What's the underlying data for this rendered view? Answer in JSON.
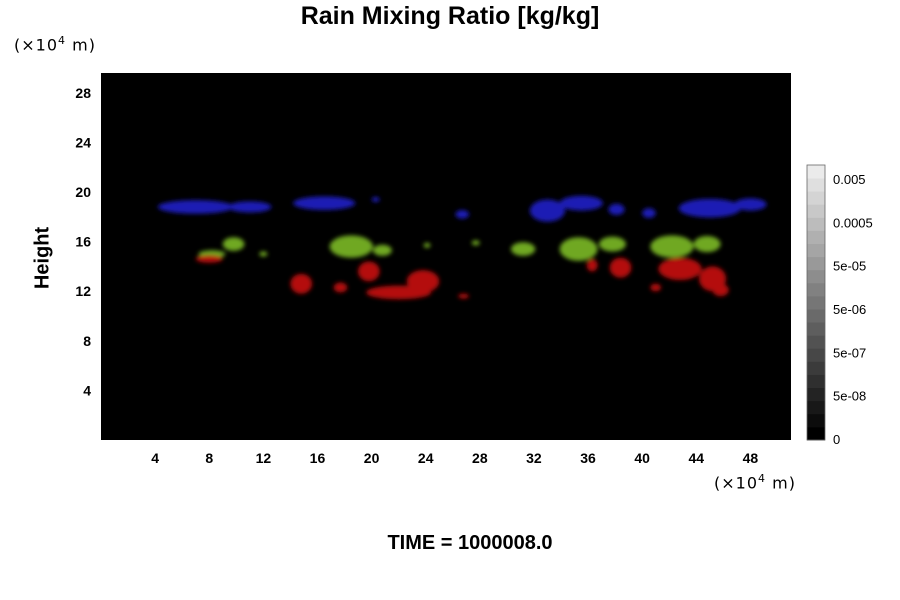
{
  "chart_data": {
    "type": "heatmap",
    "title": "Rain Mixing Ratio [kg/kg]",
    "ylabel": "Height",
    "xlabel": "",
    "x_unit": {
      "prefix": "(×10",
      "exp": "4",
      "suffix": " m)"
    },
    "y_unit": {
      "prefix": "(×10",
      "exp": "4",
      "suffix": " m)"
    },
    "xlim": [
      0,
      51
    ],
    "ylim": [
      0,
      29.6
    ],
    "x_ticks": [
      4,
      8,
      12,
      16,
      20,
      24,
      28,
      32,
      36,
      40,
      44,
      48
    ],
    "y_ticks": [
      4,
      8,
      12,
      16,
      20,
      24,
      28
    ],
    "background_color": "#000000",
    "colorbar": {
      "labels": [
        "0.005",
        "0.0005",
        "5e-05",
        "5e-06",
        "5e-07",
        "5e-08",
        "0"
      ],
      "levels": 21
    },
    "regions": [
      {
        "color": "#1a1ab4",
        "blobs": [
          {
            "x": 7.0,
            "y": 18.8,
            "rx": 2.8,
            "ry": 0.55
          },
          {
            "x": 11.0,
            "y": 18.8,
            "rx": 1.6,
            "ry": 0.45
          },
          {
            "x": 16.5,
            "y": 19.1,
            "rx": 2.3,
            "ry": 0.55
          },
          {
            "x": 20.3,
            "y": 19.4,
            "rx": 0.3,
            "ry": 0.2
          },
          {
            "x": 26.7,
            "y": 18.2,
            "rx": 0.5,
            "ry": 0.35
          },
          {
            "x": 33.0,
            "y": 18.5,
            "rx": 1.3,
            "ry": 0.9
          },
          {
            "x": 35.5,
            "y": 19.1,
            "rx": 1.6,
            "ry": 0.6
          },
          {
            "x": 38.1,
            "y": 18.6,
            "rx": 0.6,
            "ry": 0.45
          },
          {
            "x": 40.5,
            "y": 18.3,
            "rx": 0.5,
            "ry": 0.4
          },
          {
            "x": 45.0,
            "y": 18.7,
            "rx": 2.3,
            "ry": 0.75
          },
          {
            "x": 48.0,
            "y": 19.0,
            "rx": 1.2,
            "ry": 0.5
          }
        ]
      },
      {
        "color": "#6fa820",
        "blobs": [
          {
            "x": 8.2,
            "y": 15.0,
            "rx": 1.0,
            "ry": 0.3
          },
          {
            "x": 9.8,
            "y": 15.8,
            "rx": 0.8,
            "ry": 0.55
          },
          {
            "x": 12.0,
            "y": 15.0,
            "rx": 0.3,
            "ry": 0.2
          },
          {
            "x": 18.5,
            "y": 15.6,
            "rx": 1.6,
            "ry": 0.9
          },
          {
            "x": 20.8,
            "y": 15.3,
            "rx": 0.7,
            "ry": 0.45
          },
          {
            "x": 24.1,
            "y": 15.7,
            "rx": 0.25,
            "ry": 0.2
          },
          {
            "x": 27.7,
            "y": 15.9,
            "rx": 0.3,
            "ry": 0.2
          },
          {
            "x": 31.2,
            "y": 15.4,
            "rx": 0.9,
            "ry": 0.55
          },
          {
            "x": 35.3,
            "y": 15.4,
            "rx": 1.4,
            "ry": 0.95
          },
          {
            "x": 37.8,
            "y": 15.8,
            "rx": 1.0,
            "ry": 0.6
          },
          {
            "x": 42.2,
            "y": 15.6,
            "rx": 1.6,
            "ry": 0.9
          },
          {
            "x": 44.8,
            "y": 15.8,
            "rx": 1.0,
            "ry": 0.65
          }
        ]
      },
      {
        "color": "#b41010",
        "blobs": [
          {
            "x": 8.0,
            "y": 14.6,
            "rx": 1.0,
            "ry": 0.3
          },
          {
            "x": 14.8,
            "y": 12.6,
            "rx": 0.8,
            "ry": 0.8
          },
          {
            "x": 17.7,
            "y": 12.3,
            "rx": 0.5,
            "ry": 0.4
          },
          {
            "x": 19.8,
            "y": 13.6,
            "rx": 0.8,
            "ry": 0.8
          },
          {
            "x": 22.0,
            "y": 11.9,
            "rx": 2.4,
            "ry": 0.55
          },
          {
            "x": 23.8,
            "y": 12.8,
            "rx": 1.2,
            "ry": 0.9
          },
          {
            "x": 26.8,
            "y": 11.6,
            "rx": 0.4,
            "ry": 0.2
          },
          {
            "x": 36.3,
            "y": 14.1,
            "rx": 0.4,
            "ry": 0.5
          },
          {
            "x": 38.4,
            "y": 13.9,
            "rx": 0.8,
            "ry": 0.8
          },
          {
            "x": 41.0,
            "y": 12.3,
            "rx": 0.4,
            "ry": 0.3
          },
          {
            "x": 42.8,
            "y": 13.8,
            "rx": 1.6,
            "ry": 0.9
          },
          {
            "x": 45.2,
            "y": 13.0,
            "rx": 1.0,
            "ry": 1.0
          },
          {
            "x": 45.8,
            "y": 12.1,
            "rx": 0.6,
            "ry": 0.5
          }
        ]
      }
    ]
  },
  "time_label": "TIME = 1000008.0"
}
